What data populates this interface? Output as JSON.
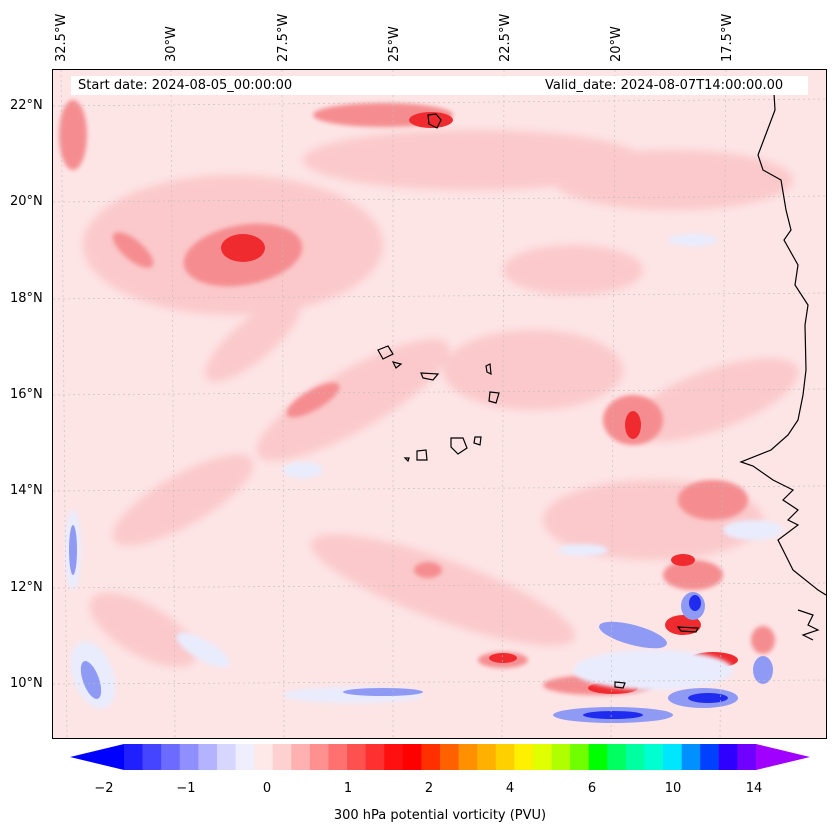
{
  "map": {
    "start_date": "Start date: 2024-08-05_00:00:00",
    "valid_date": "Valid_date: 2024-08-07T14:00:00.00",
    "lon_labels": [
      "32.5°W",
      "30°W",
      "27.5°W",
      "25°W",
      "22.5°W",
      "20°W",
      "17.5°W"
    ],
    "lat_labels": [
      "22°N",
      "20°N",
      "18°N",
      "16°N",
      "14°N",
      "12°N",
      "10°N"
    ],
    "field_colors": {
      "background": "#fde5e6",
      "light_red": "#fbc9cb",
      "red": "#f58d90",
      "strong_red": "#f02b2f",
      "light_blue": "#e9ecfd",
      "blue": "#8f9af5",
      "strong_blue": "#1f2cf0",
      "coastline": "#000000"
    }
  },
  "colorbar": {
    "label": "300 hPa potential vorticity (PVU)",
    "ticks": [
      "−2",
      "−1",
      "0",
      "1",
      "2",
      "4",
      "6",
      "10",
      "14"
    ],
    "colors": [
      "#0000ff",
      "#2020ff",
      "#4545ff",
      "#6b6bff",
      "#8f8fff",
      "#b3b3ff",
      "#d6d6ff",
      "#eeeeff",
      "#ffe8e8",
      "#ffd0d0",
      "#ffb0b0",
      "#ff9090",
      "#ff7070",
      "#ff5050",
      "#ff3030",
      "#ff1010",
      "#ff0000",
      "#ff3000",
      "#ff6000",
      "#ff9000",
      "#ffb000",
      "#ffd000",
      "#ffef00",
      "#e0ff00",
      "#b0ff00",
      "#70ff00",
      "#00ff00",
      "#00ff60",
      "#00ffa0",
      "#00ffd0",
      "#00e6ff",
      "#0090ff",
      "#0040ff",
      "#3000ff",
      "#7000ff",
      "#a000ff"
    ]
  }
}
